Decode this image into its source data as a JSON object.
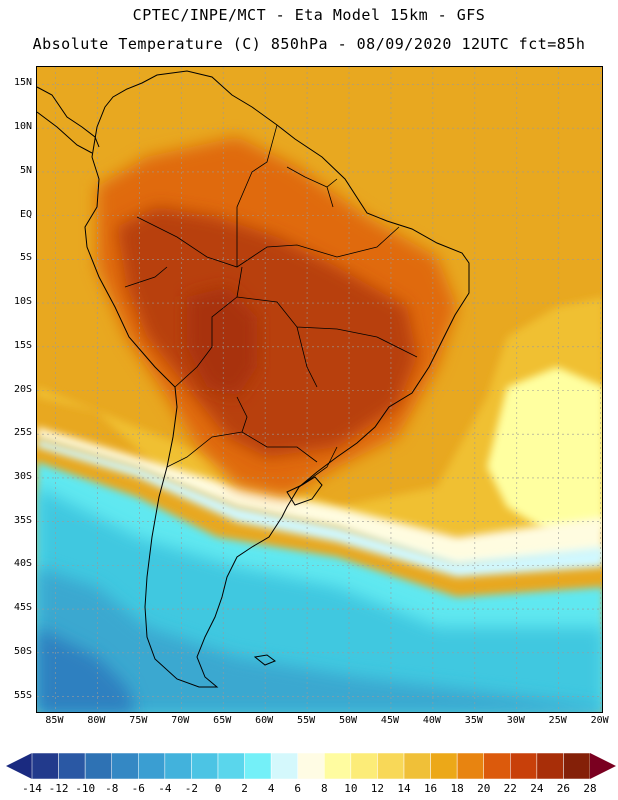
{
  "header": {
    "line1": "CPTEC/INPE/MCT -  Eta Model 15km - GFS",
    "line2": "Absolute Temperature (C) 850hPa - 08/09/2020 12UTC fct=85h"
  },
  "map": {
    "lat_labels": [
      "15N",
      "10N",
      "5N",
      "EQ",
      "5S",
      "10S",
      "15S",
      "20S",
      "25S",
      "30S",
      "35S",
      "40S",
      "45S",
      "50S",
      "55S"
    ],
    "lon_labels": [
      "85W",
      "80W",
      "75W",
      "70W",
      "65W",
      "60W",
      "55W",
      "50W",
      "45W",
      "40W",
      "35W",
      "30W",
      "25W",
      "20W"
    ],
    "lat_values": [
      15,
      10,
      5,
      0,
      -5,
      -10,
      -15,
      -20,
      -25,
      -30,
      -35,
      -40,
      -45,
      -50,
      -55
    ],
    "lon_values": [
      -85,
      -80,
      -75,
      -70,
      -65,
      -60,
      -55,
      -50,
      -45,
      -40,
      -35,
      -30,
      -25,
      -20
    ],
    "field_colors": {
      "ocean_warm": "#e8a820",
      "land_warm": "#e06a10",
      "land_hot": "#b8400a",
      "core_hot": "#a83208",
      "yellow": "#f0c030",
      "pale_yellow": "#ffffa0",
      "cream": "#fffce0",
      "pale_cyan": "#d0f8ff",
      "cyan": "#60e8f0",
      "light_blue": "#40c8e0",
      "mid_blue": "#3aa8d0",
      "deep_blue": "#2e80c0"
    }
  },
  "colorbar": {
    "labels": [
      "-14",
      "-12",
      "-10",
      "-8",
      "-6",
      "-4",
      "-2",
      "0",
      "2",
      "4",
      "6",
      "8",
      "10",
      "12",
      "14",
      "16",
      "18",
      "20",
      "22",
      "24",
      "26",
      "28"
    ],
    "low_arrow_color": "#1a2a80",
    "high_arrow_color": "#7a0020",
    "colors": [
      "#223a8c",
      "#2a58a4",
      "#2e72b4",
      "#3488c4",
      "#3a9ed2",
      "#42b2dc",
      "#4cc4e4",
      "#5ad6ec",
      "#74f0f8",
      "#d4f8fc",
      "#fffce4",
      "#fffca0",
      "#fcec78",
      "#f8d858",
      "#f0c038",
      "#eca818",
      "#e88410",
      "#dc5a0c",
      "#c8400a",
      "#a82e08",
      "#842008"
    ]
  }
}
